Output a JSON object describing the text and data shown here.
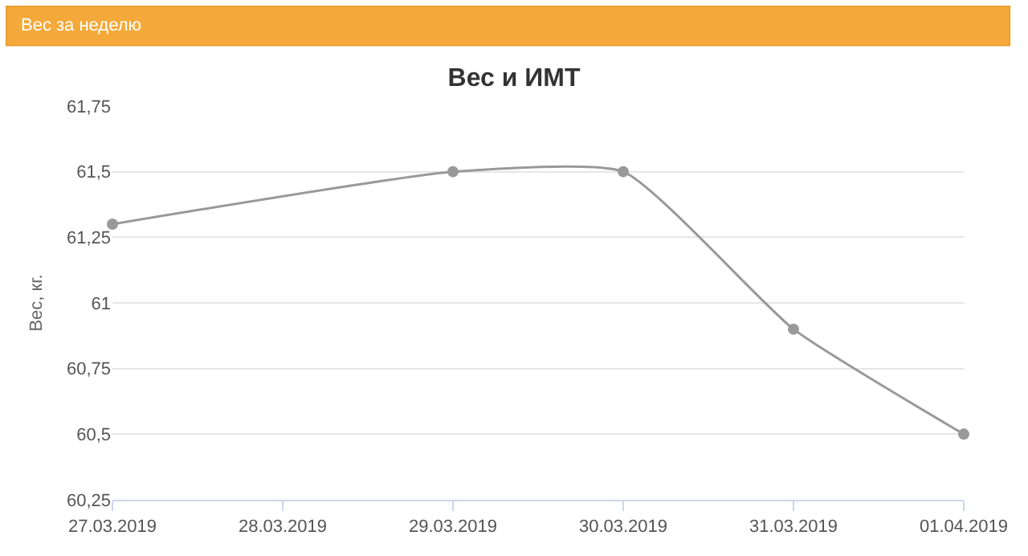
{
  "chart_data": {
    "type": "line",
    "title": "Вес и ИМТ",
    "ylabel": "Вес, кг.",
    "annotations": [
      "Вес за неделю"
    ],
    "x": [
      "2019-03-27",
      "2019-03-29",
      "2019-03-30",
      "2019-03-31",
      "2019-04-01"
    ],
    "series": [
      {
        "color": "#999999",
        "values": [
          61.3,
          61.5,
          61.5,
          60.9,
          60.5
        ]
      }
    ],
    "xlim": [
      "2019-03-27",
      "2019-04-01"
    ],
    "xticks": [
      {
        "value": "2019-03-27",
        "label": "27.03.2019"
      },
      {
        "value": "2019-03-28",
        "label": "28.03.2019"
      },
      {
        "value": "2019-03-29",
        "label": "29.03.2019"
      },
      {
        "value": "2019-03-30",
        "label": "30.03.2019"
      },
      {
        "value": "2019-03-31",
        "label": "31.03.2019"
      },
      {
        "value": "2019-04-01",
        "label": "01.04.2019"
      }
    ],
    "ylim": [
      60.25,
      61.75
    ],
    "yticks": [
      {
        "value": 60.25,
        "label": "60,25"
      },
      {
        "value": 60.5,
        "label": "60,5"
      },
      {
        "value": 60.75,
        "label": "60,75"
      },
      {
        "value": 61,
        "label": "61"
      },
      {
        "value": 61.25,
        "label": "61,25"
      },
      {
        "value": 61.5,
        "label": "61,5"
      },
      {
        "value": 61.75,
        "label": "61,75"
      }
    ],
    "grid": "y",
    "marker": "circle",
    "line_style": "solid"
  }
}
